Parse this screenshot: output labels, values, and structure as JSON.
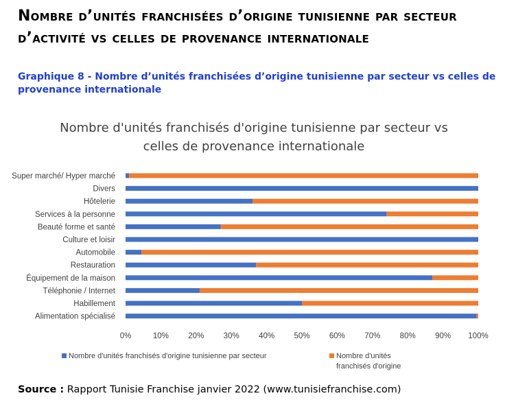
{
  "heading": "Nombre d’unités franchisées d’origine tunisienne par secteur d’activité vs celles de provenance internationale",
  "caption": "Graphique 8 - Nombre d’unités franchisées d’origine tunisienne par secteur vs celles de provenance internationale",
  "source": {
    "label": "Source :",
    "text": " Rapport Tunisie Franchise janvier 2022 (www.tunisiefranchise.com)"
  },
  "chart_data": {
    "type": "bar",
    "orientation": "horizontal",
    "stacked": "100%",
    "title_lines": [
      "Nombre d'unités franchisés d'origine tunisienne par secteur vs",
      "celles de provenance internationale"
    ],
    "categories": [
      "Super marché/ Hyper marché",
      "Divers",
      "Hôtelerie",
      "Services à la personne",
      "Beauté forme et santé",
      "Culture et loisir",
      "Automobile",
      "Restauration",
      "Équipement de la maison",
      "Téléphonie / Internet",
      "Habillement",
      "Alimentation spécialisé"
    ],
    "series": [
      {
        "name": "Nombre d'unités  franchisés d'origine tunisienne  par secteur",
        "color": "#4472c4",
        "values": [
          1,
          100,
          36,
          74,
          27,
          100,
          4.5,
          37,
          87,
          21,
          50,
          99.5
        ]
      },
      {
        "name": "Nombre d'unités franchisés d'origine internationale par secteur",
        "legend_lines": [
          "Nombre d'unités",
          "franchisés d'origine"
        ],
        "color": "#ed7d31",
        "values": [
          99,
          0,
          64,
          26,
          73,
          0,
          95.5,
          63,
          13,
          79,
          50,
          0.5
        ]
      }
    ],
    "x_ticks": [
      "0%",
      "10%",
      "20%",
      "30%",
      "40%",
      "50%",
      "60%",
      "70%",
      "80%",
      "90%",
      "100%"
    ],
    "xlim": [
      0,
      100
    ],
    "grid": false,
    "legend_position": "bottom"
  }
}
